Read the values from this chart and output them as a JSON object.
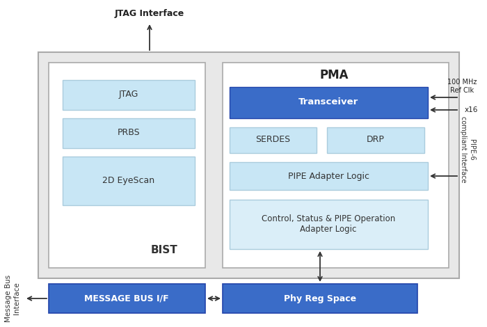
{
  "fig_bg": "#ffffff",
  "outer_bg": "#e8e8e8",
  "inner_bg": "#ffffff",
  "dark_blue": "#3a6cc8",
  "light_blue": "#c8e6f5",
  "lighter_blue": "#daeef8",
  "border_gray": "#999999",
  "inner_border": "#cccccc",
  "jtag_interface_label": "JTAG Interface",
  "msg_bus_interface_label": "Message Bus\nInterface",
  "ref_clk_label": "100 MHz\nRef Clk",
  "x16_label": "x16",
  "pipe6_label": "PIPE-6\ncompliant Interface",
  "bist_label": "BIST",
  "pma_label": "PMA",
  "jtag_label": "JTAG",
  "prbs_label": "PRBS",
  "eyescan_label": "2D EyeScan",
  "transceiver_label": "Transceiver",
  "serdes_label": "SERDES",
  "drp_label": "DRP",
  "pipe_adapter_label": "PIPE Adapter Logic",
  "ctrl_status_label": "Control, Status & PIPE Operation\nAdapter Logic",
  "msg_bus_label": "MESSAGE BUS I/F",
  "phy_reg_label": "Phy Reg Space"
}
